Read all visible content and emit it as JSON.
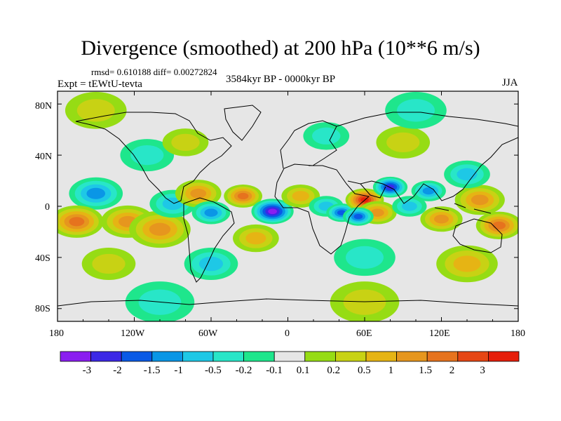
{
  "figure": {
    "title": "Divergence (smoothed) at 200 hPa (10**6 m/s)",
    "stats": "rmsd= 0.610188 diff= 0.00272824",
    "experiment": "Expt = tEWtU-tevta",
    "period": "3584kyr BP - 0000kyr BP",
    "season": "JJA"
  },
  "axes": {
    "y_ticks": [
      "80N",
      "40N",
      "0",
      "40S",
      "80S"
    ],
    "x_ticks": [
      "180",
      "120W",
      "60W",
      "0",
      "60E",
      "120E",
      "180"
    ]
  },
  "colorbar": {
    "colors": [
      "#8a1ef0",
      "#3c28e6",
      "#0a5ae6",
      "#0a96e6",
      "#1ec8e6",
      "#28e6c8",
      "#1ee68c",
      "#e6e6e6",
      "#96dc14",
      "#c8d214",
      "#e6b414",
      "#e6961e",
      "#e6731e",
      "#e64614",
      "#e61e0a"
    ],
    "labels": [
      "-3",
      "-2",
      "-1.5",
      "-1",
      "-0.5",
      "-0.2",
      "-0.1",
      "0.1",
      "0.2",
      "0.5",
      "1",
      "1.5",
      "2",
      "3"
    ]
  },
  "map_data": {
    "lon_range": [
      -180,
      180
    ],
    "lat_range": [
      -90,
      90
    ],
    "features": [
      {
        "lon": -150,
        "lat": 10,
        "v": -1.0,
        "r": 14
      },
      {
        "lon": -165,
        "lat": -12,
        "v": 1.6,
        "r": 14
      },
      {
        "lon": -125,
        "lat": -12,
        "v": 1.3,
        "r": 14
      },
      {
        "lon": -100,
        "lat": -18,
        "v": 1.2,
        "r": 16
      },
      {
        "lon": -90,
        "lat": 2,
        "v": -0.8,
        "r": 12
      },
      {
        "lon": -70,
        "lat": 10,
        "v": 1.0,
        "r": 12
      },
      {
        "lon": -60,
        "lat": -5,
        "v": -1.0,
        "r": 10
      },
      {
        "lon": -35,
        "lat": 8,
        "v": 1.6,
        "r": 10
      },
      {
        "lon": -12,
        "lat": -4,
        "v": -3.0,
        "r": 11
      },
      {
        "lon": -25,
        "lat": -25,
        "v": 0.9,
        "r": 12
      },
      {
        "lon": 10,
        "lat": 8,
        "v": 0.8,
        "r": 10
      },
      {
        "lon": 30,
        "lat": 0,
        "v": -0.7,
        "r": 9
      },
      {
        "lon": 42,
        "lat": -5,
        "v": -1.5,
        "r": 8
      },
      {
        "lon": 60,
        "lat": 5,
        "v": 3.2,
        "r": 10
      },
      {
        "lon": 80,
        "lat": 15,
        "v": -2.0,
        "r": 9
      },
      {
        "lon": 70,
        "lat": -5,
        "v": 1.2,
        "r": 10
      },
      {
        "lon": 55,
        "lat": -8,
        "v": -1.7,
        "r": 8
      },
      {
        "lon": 95,
        "lat": 0,
        "v": -0.8,
        "r": 9
      },
      {
        "lon": 110,
        "lat": 12,
        "v": -1.4,
        "r": 9
      },
      {
        "lon": 120,
        "lat": -10,
        "v": 1.3,
        "r": 11
      },
      {
        "lon": 150,
        "lat": 5,
        "v": 1.0,
        "r": 13
      },
      {
        "lon": 165,
        "lat": -15,
        "v": 1.5,
        "r": 12
      },
      {
        "lon": 140,
        "lat": 25,
        "v": -0.5,
        "r": 12
      },
      {
        "lon": -110,
        "lat": 40,
        "v": -0.4,
        "r": 14
      },
      {
        "lon": -80,
        "lat": 50,
        "v": 0.4,
        "r": 12
      },
      {
        "lon": 30,
        "lat": 55,
        "v": -0.4,
        "r": 12
      },
      {
        "lon": 90,
        "lat": 50,
        "v": 0.4,
        "r": 14
      },
      {
        "lon": 60,
        "lat": -40,
        "v": -0.4,
        "r": 16
      },
      {
        "lon": -60,
        "lat": -45,
        "v": -0.5,
        "r": 14
      },
      {
        "lon": 140,
        "lat": -45,
        "v": 0.5,
        "r": 16
      },
      {
        "lon": -140,
        "lat": -45,
        "v": 0.4,
        "r": 14
      },
      {
        "lon": -100,
        "lat": -75,
        "v": -0.4,
        "r": 18
      },
      {
        "lon": 60,
        "lat": -75,
        "v": 0.3,
        "r": 18
      },
      {
        "lon": -150,
        "lat": 75,
        "v": 0.3,
        "r": 16
      },
      {
        "lon": 100,
        "lat": 75,
        "v": -0.3,
        "r": 16
      }
    ]
  }
}
